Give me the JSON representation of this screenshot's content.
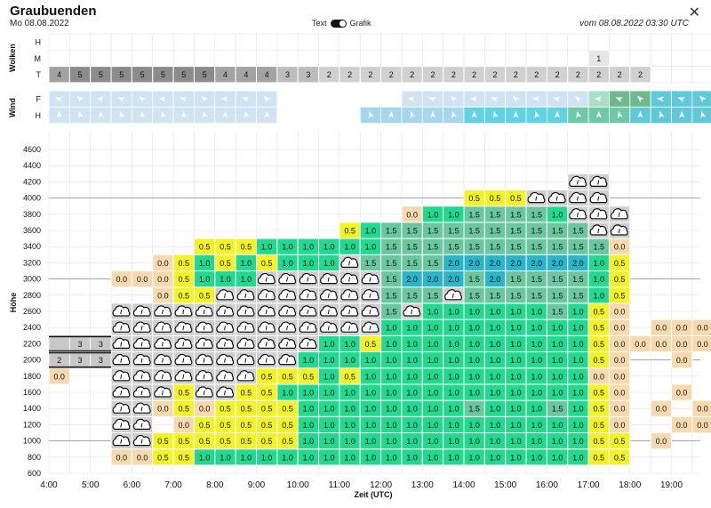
{
  "header": {
    "title": "Graubuenden",
    "date": "Mo 08.08.2022",
    "toggle_left": "Text",
    "toggle_right": "Grafik",
    "valid": "vom 08.08.2022 03:30 UTC",
    "close_icon": "close-icon"
  },
  "rows": {
    "clouds_group": "Wolken",
    "wind_group": "Wind",
    "cloud_labels": [
      "H",
      "M",
      "T"
    ],
    "wind_labels": [
      "F",
      "H"
    ]
  },
  "clouds": {
    "M": {
      "17:00": "1"
    },
    "T": [
      "4",
      "5",
      "5",
      "5",
      "5",
      "5",
      "5",
      "5",
      "4",
      "4",
      "4",
      "3",
      "3",
      "2",
      "2",
      "2",
      "2",
      "2",
      "2",
      "2",
      "2",
      "2",
      "2",
      "2",
      "2",
      "2",
      "2",
      "2",
      "2"
    ]
  },
  "chart_data": {
    "type": "heatmap",
    "xlabel": "Zeit (UTC)",
    "ylabel": "Höhe",
    "x_ticks": [
      "4:00",
      "5:00",
      "6:00",
      "7:00",
      "8:00",
      "9:00",
      "10:00",
      "11:00",
      "12:00",
      "13:00",
      "14:00",
      "15:00",
      "16:00",
      "17:00",
      "18:00",
      "19:00"
    ],
    "y_ticks": [
      600,
      800,
      1000,
      1200,
      1400,
      1600,
      1800,
      2000,
      2200,
      2400,
      2600,
      2800,
      3000,
      3200,
      3400,
      3600,
      3800,
      4000,
      4200,
      4400,
      4600
    ],
    "time_start": "4:00",
    "time_step_minutes": 30,
    "altitude_step": 200,
    "legend_colors": {
      "0.0": "#f6d9ae",
      "0.5": "#f2f22a",
      "1.0": "#22d98f",
      "1.5": "#6bc7a0",
      "2.0": "#2ab5c8",
      "cloud": "#cfcfcf",
      "layer": "#c8c8c8"
    },
    "columns": [
      {
        "t": "4:00",
        "cells": {
          "1800": "0.0"
        }
      },
      {
        "t": "4:30",
        "cells": {}
      },
      {
        "t": "5:00",
        "cells": {}
      },
      {
        "t": "5:30",
        "cells": {
          "800": "0.0",
          "1000": "C",
          "1200": "C",
          "1400": "C",
          "1600": "C",
          "1800": "C",
          "2000": "C",
          "2200": "C",
          "2400": "C",
          "2600": "C",
          "3000": "0.0"
        }
      },
      {
        "t": "6:00",
        "cells": {
          "800": "0.0",
          "1000": "C",
          "1200": "C",
          "1400": "C",
          "1600": "C",
          "1800": "C",
          "2000": "C",
          "2200": "C",
          "2400": "C",
          "2600": "C",
          "3000": "0.0"
        }
      },
      {
        "t": "6:30",
        "cells": {
          "800": "0.5",
          "1000": "0.5",
          "1400": "0.0",
          "1600": "C",
          "1800": "C",
          "2000": "C",
          "2200": "C",
          "2400": "C",
          "2600": "C",
          "2800": "0.0",
          "3000": "0.0",
          "3200": "0.0"
        }
      },
      {
        "t": "7:00",
        "cells": {
          "800": "0.5",
          "1000": "0.5",
          "1200": "0.0",
          "1400": "0.5",
          "1600": "0.5",
          "1800": "C",
          "2000": "C",
          "2200": "C",
          "2400": "C",
          "2600": "C",
          "2800": "0.5",
          "3000": "0.5",
          "3200": "0.5"
        }
      },
      {
        "t": "7:30",
        "cells": {
          "800": "1.0",
          "1000": "0.5",
          "1200": "0.5",
          "1400": "0.0",
          "1600": "C",
          "1800": "C",
          "2000": "C",
          "2200": "C",
          "2400": "C",
          "2600": "C",
          "2800": "0.5",
          "3000": "1.0",
          "3200": "1.0",
          "3400": "0.5"
        }
      },
      {
        "t": "8:00",
        "cells": {
          "800": "1.0",
          "1000": "0.5",
          "1200": "0.5",
          "1400": "0.5",
          "1600": "C",
          "1800": "C",
          "2000": "C",
          "2200": "C",
          "2400": "C",
          "2600": "C",
          "2800": "C",
          "3000": "1.0",
          "3200": "0.5",
          "3400": "0.5"
        }
      },
      {
        "t": "8:30",
        "cells": {
          "800": "1.0",
          "1000": "0.5",
          "1200": "0.5",
          "1400": "0.5",
          "1600": "0.5",
          "1800": "C",
          "2000": "C",
          "2200": "C",
          "2400": "C",
          "2600": "C",
          "2800": "C",
          "3000": "1.0",
          "3200": "1.0",
          "3400": "0.5"
        }
      },
      {
        "t": "9:00",
        "cells": {
          "800": "1.0",
          "1000": "0.5",
          "1200": "0.5",
          "1400": "0.5",
          "1600": "0.5",
          "1800": "0.5",
          "2000": "C",
          "2200": "C",
          "2400": "C",
          "2600": "C",
          "2800": "C",
          "3000": "C",
          "3200": "0.5",
          "3400": "1.0"
        }
      },
      {
        "t": "9:30",
        "cells": {
          "800": "1.0",
          "1000": "0.5",
          "1200": "0.5",
          "1400": "0.5",
          "1600": "1.0",
          "1800": "0.5",
          "2000": "C",
          "2200": "C",
          "2400": "C",
          "2600": "C",
          "2800": "C",
          "3000": "C",
          "3200": "1.0",
          "3400": "1.0"
        }
      },
      {
        "t": "10:00",
        "cells": {
          "800": "1.0",
          "1000": "1.0",
          "1200": "1.0",
          "1400": "1.0",
          "1600": "1.0",
          "1800": "0.5",
          "2000": "1.0",
          "2200": "C",
          "2400": "C",
          "2600": "C",
          "2800": "C",
          "3000": "C",
          "3200": "1.0",
          "3400": "1.0"
        }
      },
      {
        "t": "10:30",
        "cells": {
          "800": "1.0",
          "1000": "1.0",
          "1200": "1.0",
          "1400": "1.0",
          "1600": "1.0",
          "1800": "1.0",
          "2000": "1.0",
          "2200": "1.0",
          "2400": "C",
          "2600": "C",
          "2800": "C",
          "3000": "C",
          "3200": "1.0",
          "3400": "1.0"
        }
      },
      {
        "t": "11:00",
        "cells": {
          "800": "1.0",
          "1000": "1.0",
          "1200": "1.0",
          "1400": "1.0",
          "1600": "1.0",
          "1800": "0.5",
          "2000": "1.0",
          "2200": "1.0",
          "2400": "C",
          "2600": "C",
          "2800": "C",
          "3000": "C",
          "3200": "C",
          "3400": "1.0",
          "3600": "0.5"
        }
      },
      {
        "t": "11:30",
        "cells": {
          "800": "1.0",
          "1000": "1.0",
          "1200": "1.0",
          "1400": "1.0",
          "1600": "1.0",
          "1800": "1.0",
          "2000": "1.0",
          "2200": "0.5",
          "2400": "C",
          "2600": "C",
          "2800": "C",
          "3000": "C",
          "3200": "1.5",
          "3400": "1.0",
          "3600": "1.0"
        }
      },
      {
        "t": "12:00",
        "cells": {
          "800": "1.0",
          "1000": "1.0",
          "1200": "1.0",
          "1400": "1.0",
          "1600": "1.0",
          "1800": "1.0",
          "2000": "1.0",
          "2200": "1.0",
          "2400": "1.0",
          "2600": "1.5",
          "2800": "1.5",
          "3000": "1.5",
          "3200": "1.5",
          "3400": "1.5",
          "3600": "1.5"
        }
      },
      {
        "t": "12:30",
        "cells": {
          "800": "1.0",
          "1000": "1.0",
          "1200": "1.0",
          "1400": "1.0",
          "1600": "1.0",
          "1800": "1.0",
          "2000": "1.0",
          "2200": "1.0",
          "2400": "1.0",
          "2600": "C",
          "2800": "1.5",
          "3000": "2.0",
          "3200": "1.5",
          "3400": "1.5",
          "3600": "1.5",
          "3800": "0.0"
        }
      },
      {
        "t": "13:00",
        "cells": {
          "800": "1.0",
          "1000": "1.0",
          "1200": "1.0",
          "1400": "1.0",
          "1600": "1.0",
          "1800": "1.0",
          "2000": "1.0",
          "2200": "1.0",
          "2400": "1.0",
          "2600": "1.0",
          "2800": "1.5",
          "3000": "2.0",
          "3200": "1.5",
          "3400": "1.5",
          "3600": "1.5",
          "3800": "1.0"
        }
      },
      {
        "t": "13:30",
        "cells": {
          "800": "1.0",
          "1000": "1.0",
          "1200": "1.0",
          "1400": "1.0",
          "1600": "1.0",
          "1800": "1.0",
          "2000": "1.0",
          "2200": "1.0",
          "2400": "1.0",
          "2600": "1.0",
          "2800": "C",
          "3000": "2.0",
          "3200": "2.0",
          "3400": "1.5",
          "3600": "1.5",
          "3800": "1.0"
        }
      },
      {
        "t": "14:00",
        "cells": {
          "800": "1.0",
          "1000": "1.0",
          "1200": "1.0",
          "1400": "1.5",
          "1600": "1.0",
          "1800": "1.0",
          "2000": "1.0",
          "2200": "1.0",
          "2400": "1.0",
          "2600": "1.0",
          "2800": "1.5",
          "3000": "1.5",
          "3200": "2.0",
          "3400": "1.5",
          "3600": "1.5",
          "3800": "1.5",
          "4000": "0.5"
        }
      },
      {
        "t": "14:30",
        "cells": {
          "800": "1.0",
          "1000": "1.0",
          "1200": "1.0",
          "1400": "1.0",
          "1600": "1.0",
          "1800": "1.0",
          "2000": "1.0",
          "2200": "1.0",
          "2400": "1.0",
          "2600": "1.0",
          "2800": "1.5",
          "3000": "2.0",
          "3200": "2.0",
          "3400": "1.5",
          "3600": "1.5",
          "3800": "1.5",
          "4000": "0.5"
        }
      },
      {
        "t": "15:00",
        "cells": {
          "800": "1.0",
          "1000": "1.0",
          "1200": "1.0",
          "1400": "1.0",
          "1600": "1.0",
          "1800": "1.0",
          "2000": "1.0",
          "2200": "1.0",
          "2400": "1.0",
          "2600": "1.0",
          "2800": "1.5",
          "3000": "1.5",
          "3200": "2.0",
          "3400": "1.5",
          "3600": "1.5",
          "3800": "1.5",
          "4000": "0.5"
        }
      },
      {
        "t": "15:30",
        "cells": {
          "800": "1.0",
          "1000": "1.0",
          "1200": "1.0",
          "1400": "1.0",
          "1600": "1.0",
          "1800": "1.0",
          "2000": "1.0",
          "2200": "1.0",
          "2400": "1.0",
          "2600": "1.0",
          "2800": "1.5",
          "3000": "1.5",
          "3200": "2.0",
          "3400": "1.5",
          "3600": "1.5",
          "3800": "1.5",
          "4000": "C"
        }
      },
      {
        "t": "16:00",
        "cells": {
          "800": "1.0",
          "1000": "1.0",
          "1200": "1.0",
          "1400": "1.5",
          "1600": "1.0",
          "1800": "1.0",
          "2000": "1.0",
          "2200": "1.0",
          "2400": "1.0",
          "2600": "1.5",
          "2800": "1.5",
          "3000": "1.5",
          "3200": "2.0",
          "3400": "1.5",
          "3600": "1.5",
          "3800": "1.0",
          "4000": "C"
        }
      },
      {
        "t": "16:30",
        "cells": {
          "800": "1.0",
          "1000": "1.0",
          "1200": "1.0",
          "1400": "1.0",
          "1600": "1.0",
          "1800": "1.0",
          "2000": "1.0",
          "2200": "1.0",
          "2400": "1.0",
          "2600": "1.0",
          "2800": "1.5",
          "3000": "1.5",
          "3200": "2.0",
          "3400": "1.5",
          "3600": "1.5",
          "3800": "C",
          "4000": "C",
          "4200": "C"
        }
      },
      {
        "t": "17:00",
        "cells": {
          "800": "0.5",
          "1000": "0.5",
          "1200": "0.5",
          "1400": "0.5",
          "1600": "0.5",
          "1800": "0.0",
          "2000": "0.5",
          "2200": "0.5",
          "2400": "0.5",
          "2600": "0.5",
          "2800": "1.0",
          "3000": "1.0",
          "3200": "1.0",
          "3400": "1.5",
          "3600": "C",
          "3800": "C",
          "4000": "C",
          "4200": "C"
        }
      },
      {
        "t": "17:30",
        "cells": {
          "800": "0.5",
          "1000": "0.5",
          "1200": "0.0",
          "1400": "0.0",
          "1600": "0.0",
          "1800": "0.0",
          "2000": "0.0",
          "2200": "0.0",
          "2400": "0.0",
          "2600": "0.0",
          "2800": "0.5",
          "3000": "0.5",
          "3200": "0.5",
          "3400": "0.0",
          "3600": "C",
          "3800": "C"
        }
      },
      {
        "t": "18:00",
        "cells": {
          "2200": "0.0"
        }
      },
      {
        "t": "18:30",
        "cells": {
          "1000": "0.0",
          "1400": "0.0",
          "2200": "0.0",
          "2400": "0.0"
        }
      },
      {
        "t": "19:00",
        "cells": {
          "1200": "0.0",
          "1600": "0.0",
          "2000": "0.0",
          "2200": "0.0",
          "2400": "0.0"
        }
      },
      {
        "t": "19:30",
        "cells": {
          "1200": "0.0",
          "1400": "0.0",
          "2200": "0.0",
          "2400": "0.0"
        }
      }
    ],
    "cloud_layers": [
      {
        "from": "4:30",
        "to": "5:30",
        "altitude": 2000,
        "values": [
          "2",
          "3",
          "3"
        ]
      },
      {
        "from": "4:30",
        "to": "5:30",
        "altitude": 2200,
        "values": [
          "",
          "3",
          "3"
        ]
      }
    ]
  },
  "wind": {
    "F_from": "4:00",
    "F_to": "21:30",
    "H_from": "4:00",
    "H_to": "21:30"
  }
}
